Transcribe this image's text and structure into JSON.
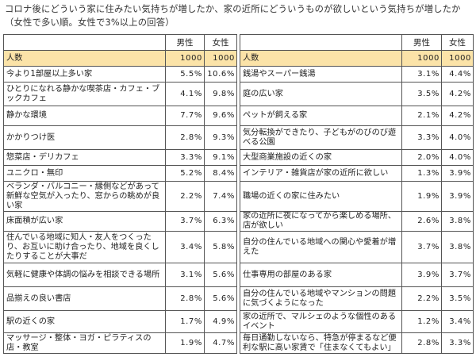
{
  "title": "コロナ後にどういう家に住みたい気持ちが増したか、家の近所にどういうものが欲しいという気持ちが増したか（女性で多い順。女性で3%以上の回答）",
  "table": {
    "headers": {
      "male": "男性",
      "female": "女性"
    },
    "count_row": {
      "label": "人数",
      "male": "1000",
      "female": "1000"
    },
    "left_rows": [
      {
        "label": "今より1部屋以上多い家",
        "male": "5.5%",
        "female": "10.6%"
      },
      {
        "label": "ひとりになれる静かな喫茶店・カフェ・ブックカフェ",
        "male": "4.1%",
        "female": "9.8%"
      },
      {
        "label": "静かな環境",
        "male": "7.7%",
        "female": "9.6%"
      },
      {
        "label": "かかりつけ医",
        "male": "2.8%",
        "female": "9.3%"
      },
      {
        "label": "惣菜店・デリカフェ",
        "male": "3.3%",
        "female": "9.1%"
      },
      {
        "label": "ユニクロ・無印",
        "male": "5.2%",
        "female": "8.4%"
      },
      {
        "label": "ベランダ・バルコニー・縁側などがあって新鮮な空気が入ったり、窓からの眺めが良い家",
        "male": "2.2%",
        "female": "7.4%"
      },
      {
        "label": "床面積が広い家",
        "male": "3.7%",
        "female": "6.3%"
      },
      {
        "label": "住んでいる地域に知人・友人をつくったり、お互いに助け合ったり、地域を良くしたりすることが大事だ",
        "male": "3.4%",
        "female": "5.8%"
      },
      {
        "label": "気軽に健康や体調の悩みを相談できる場所",
        "male": "3.1%",
        "female": "5.6%"
      },
      {
        "label": "品揃えの良い書店",
        "male": "2.8%",
        "female": "5.6%"
      },
      {
        "label": "駅の近くの家",
        "male": "1.7%",
        "female": "4.9%"
      },
      {
        "label": "マッサージ・整体・ヨガ・ピラティスの店・教室",
        "male": "1.9%",
        "female": "4.7%"
      }
    ],
    "right_rows": [
      {
        "label": "銭湯やスーパー銭湯",
        "male": "3.1%",
        "female": "4.4%"
      },
      {
        "label": "庭の広い家",
        "male": "3.5%",
        "female": "4.2%"
      },
      {
        "label": "ペットが飼える家",
        "male": "2.1%",
        "female": "4.2%"
      },
      {
        "label": "気分転換ができたり、子どもがのびのび遊べる公園",
        "male": "3.3%",
        "female": "4.0%"
      },
      {
        "label": "大型商業施設の近くの家",
        "male": "2.0%",
        "female": "4.0%"
      },
      {
        "label": "インテリア・雑貨店が家の近所に欲しい",
        "male": "1.3%",
        "female": "3.9%"
      },
      {
        "label": "職場の近くの家に住みたい",
        "male": "1.9%",
        "female": "3.9%"
      },
      {
        "label": "家の近所に夜になってから楽しめる場所、店が欲しい",
        "male": "2.6%",
        "female": "3.8%"
      },
      {
        "label": "自分の住んでいる地域への関心や愛着が増えた",
        "male": "3.7%",
        "female": "3.8%"
      },
      {
        "label": "仕事専用の部屋のある家",
        "male": "3.9%",
        "female": "3.7%"
      },
      {
        "label": "自分の住んでいる地域やマンションの問題に気づくようになった",
        "male": "2.2%",
        "female": "3.5%"
      },
      {
        "label": "家の近所で、マルシェのような個性のあるイベント",
        "male": "1.2%",
        "female": "3.4%"
      },
      {
        "label": "毎日通勤しないなら、特急が停まるなど便利な駅に高い家賃で「住まなくてもよい」",
        "male": "2.8%",
        "female": "3.3%"
      }
    ]
  }
}
